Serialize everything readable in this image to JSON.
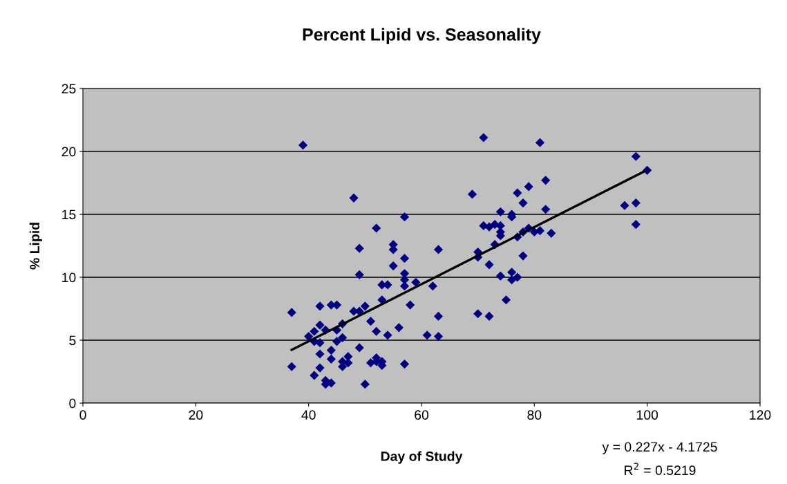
{
  "chart_data": {
    "type": "scatter",
    "title": "Percent Lipid vs. Seasonality",
    "xlabel": "Day of Study",
    "ylabel": "% Lipid",
    "xlim": [
      0,
      120
    ],
    "xticks": [
      0,
      20,
      40,
      60,
      80,
      100,
      120
    ],
    "ylim": [
      0,
      25
    ],
    "yticks": [
      0,
      5,
      10,
      15,
      20,
      25
    ],
    "grid": "y",
    "legend": false,
    "series": [
      {
        "marker": "diamond",
        "color": "#000080",
        "x": [
          37,
          37,
          39,
          40,
          41,
          41,
          41,
          42,
          42,
          42,
          42,
          42,
          43,
          43,
          43,
          44,
          44,
          44,
          44,
          45,
          45,
          45,
          46,
          46,
          46,
          46,
          47,
          47,
          48,
          48,
          49,
          49,
          49,
          49,
          50,
          50,
          51,
          51,
          52,
          52,
          52,
          52,
          53,
          53,
          53,
          53,
          54,
          54,
          55,
          55,
          55,
          56,
          57,
          57,
          57,
          57,
          57,
          57,
          58,
          59,
          61,
          62,
          63,
          63,
          63,
          69,
          70,
          70,
          70,
          71,
          71,
          72,
          72,
          72,
          73,
          73,
          74,
          74,
          74,
          74,
          74,
          75,
          76,
          76,
          76,
          76,
          77,
          77,
          77,
          78,
          78,
          78,
          79,
          79,
          80,
          81,
          81,
          82,
          82,
          83,
          96,
          98,
          98,
          98,
          100
        ],
        "values": [
          7.2,
          2.9,
          20.5,
          5.3,
          5.7,
          4.9,
          2.2,
          7.7,
          6.2,
          4.8,
          3.9,
          2.8,
          5.8,
          1.8,
          1.5,
          7.8,
          4.2,
          3.5,
          1.6,
          7.8,
          5.8,
          4.9,
          6.3,
          5.2,
          3.3,
          2.9,
          3.7,
          3.2,
          16.3,
          7.3,
          12.3,
          10.2,
          7.3,
          4.4,
          7.7,
          1.5,
          6.5,
          3.2,
          13.9,
          5.7,
          3.6,
          3.3,
          9.4,
          8.2,
          3.3,
          3.0,
          9.4,
          5.4,
          12.6,
          12.2,
          10.9,
          6.0,
          14.8,
          11.5,
          10.3,
          9.8,
          9.3,
          3.1,
          7.8,
          9.6,
          5.4,
          9.3,
          12.2,
          6.9,
          5.3,
          16.6,
          12.0,
          11.6,
          7.1,
          21.1,
          14.1,
          14.0,
          11.0,
          6.9,
          14.2,
          12.6,
          15.2,
          14.1,
          13.6,
          13.3,
          10.1,
          8.2,
          15.0,
          14.8,
          10.4,
          9.8,
          16.7,
          13.2,
          10.0,
          15.9,
          13.6,
          11.7,
          17.2,
          13.9,
          13.6,
          20.7,
          13.7,
          17.7,
          15.4,
          13.5,
          15.7,
          19.6,
          15.9,
          14.2,
          18.5
        ]
      },
      {
        "type": "line",
        "marker": "none",
        "color": "#000000",
        "x": [
          37,
          100
        ],
        "values": [
          4.23,
          18.53
        ]
      }
    ],
    "annotations": [
      "y = 0.227x - 4.1725",
      "R$^{2}$ = 0.5219"
    ]
  }
}
